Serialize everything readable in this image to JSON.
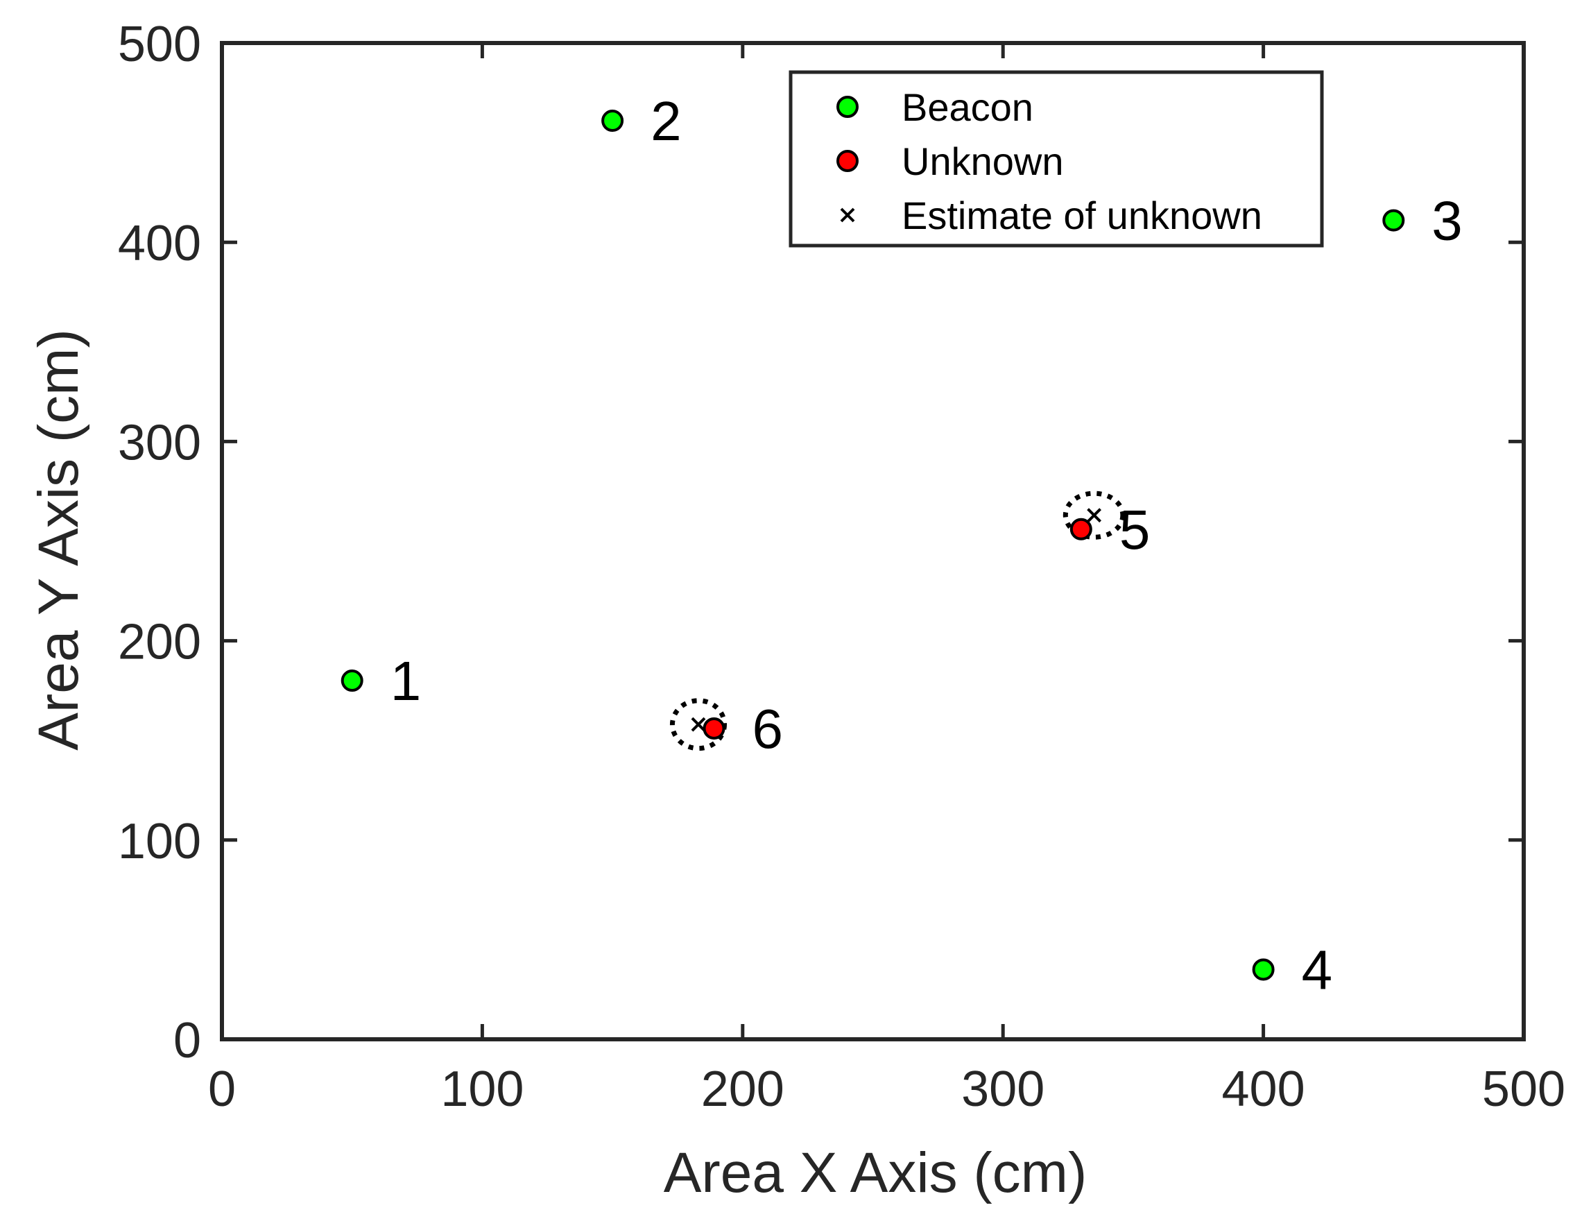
{
  "chart_data": {
    "type": "scatter",
    "xlabel": "Area X Axis (cm)",
    "ylabel": "Area Y Axis (cm)",
    "xlim": [
      0,
      500
    ],
    "ylim": [
      0,
      500
    ],
    "xticks": [
      "0",
      "100",
      "200",
      "300",
      "400",
      "500"
    ],
    "yticks": [
      "0",
      "100",
      "200",
      "300",
      "400",
      "500"
    ],
    "grid": false,
    "legend": {
      "position": "top-right",
      "entries": [
        "Beacon",
        "Unknown",
        "Estimate of unknown"
      ]
    },
    "series": [
      {
        "name": "Beacon",
        "color": "#00ff00",
        "marker": "circle",
        "points": [
          {
            "label": "1",
            "x": 50,
            "y": 180
          },
          {
            "label": "2",
            "x": 150,
            "y": 461
          },
          {
            "label": "3",
            "x": 450,
            "y": 411
          },
          {
            "label": "4",
            "x": 400,
            "y": 35
          }
        ]
      },
      {
        "name": "Unknown",
        "color": "#ff0000",
        "marker": "circle",
        "points": [
          {
            "label": "5",
            "x": 330,
            "y": 256
          },
          {
            "label": "6",
            "x": 189,
            "y": 156
          }
        ]
      },
      {
        "name": "Estimate of unknown",
        "color": "#000000",
        "marker": "x",
        "points": [
          {
            "x": 335,
            "y": 263
          },
          {
            "x": 183,
            "y": 158
          }
        ]
      }
    ],
    "uncertainty_ellipses": [
      {
        "x": 335,
        "y": 263,
        "rx": 11,
        "ry": 11
      },
      {
        "x": 183,
        "y": 158,
        "rx": 10,
        "ry": 12
      }
    ]
  }
}
